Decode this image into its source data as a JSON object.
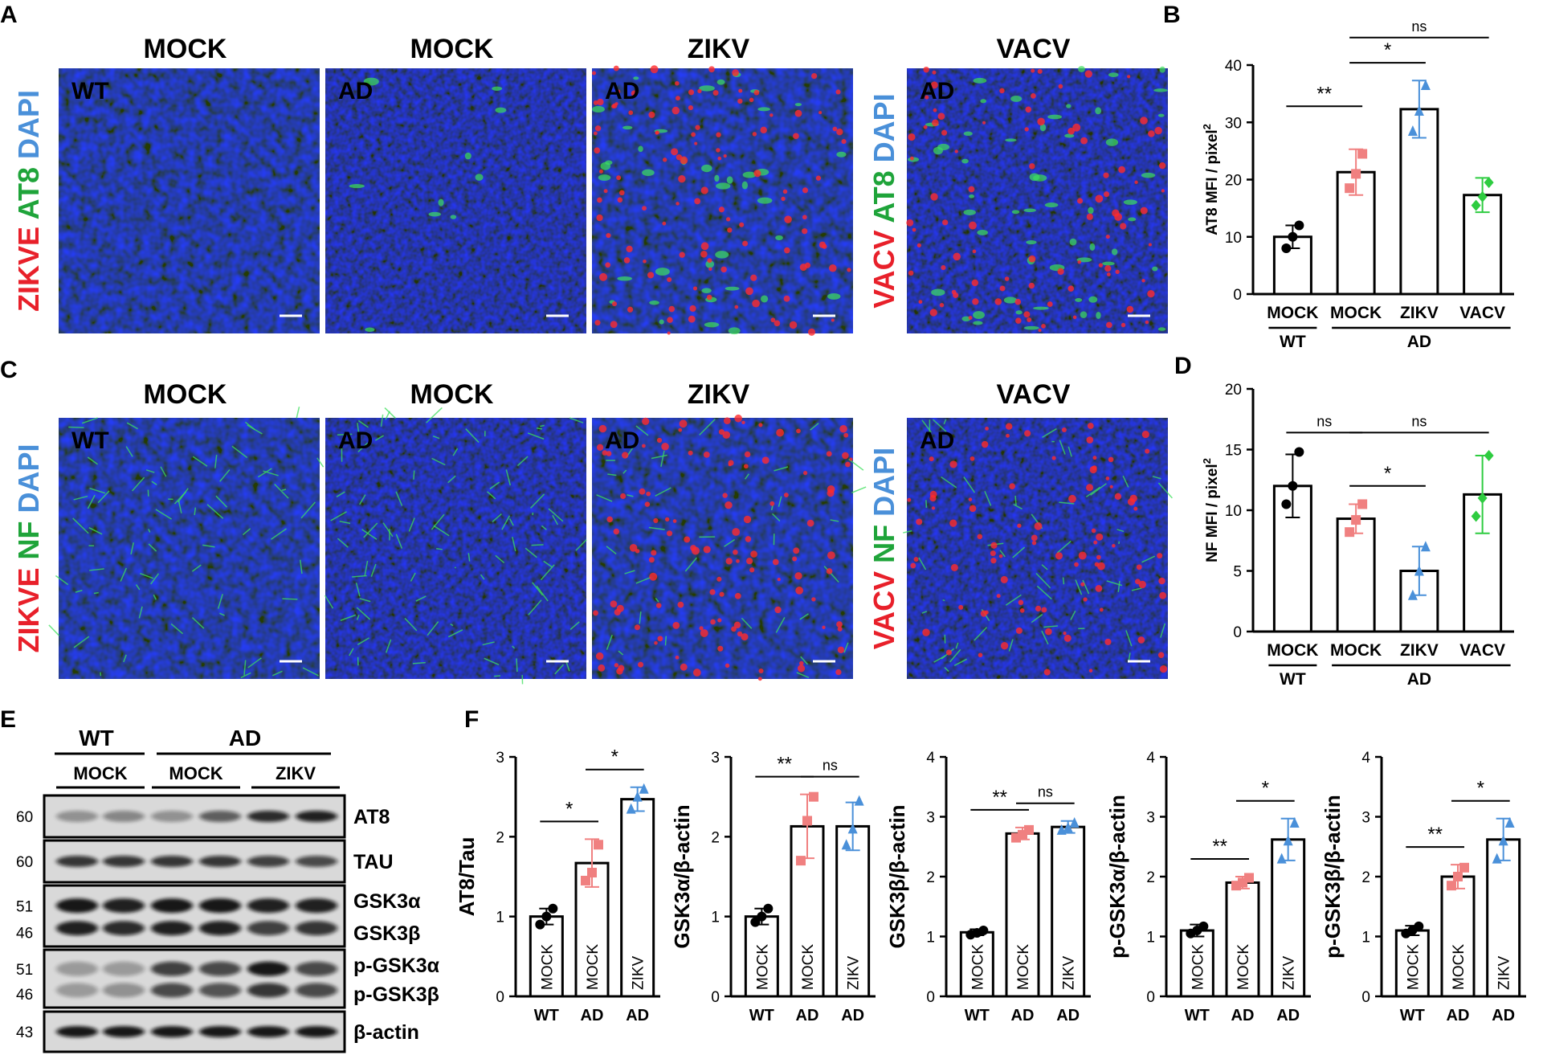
{
  "panel_letters": {
    "a": "A",
    "b": "B",
    "c": "C",
    "d": "D",
    "e": "E",
    "f": "F"
  },
  "micro_A": {
    "headers": [
      "MOCK",
      "MOCK",
      "ZIKV",
      "VACV"
    ],
    "tiles": [
      "WT",
      "AD",
      "AD",
      "AD"
    ],
    "left_stain": [
      {
        "text": "ZIKVE",
        "color": "#e8202a"
      },
      {
        "text": " AT8",
        "color": "#1fa43a"
      },
      {
        "text": " DAPI",
        "color": "#4a90d9"
      }
    ],
    "right_stain": [
      {
        "text": "VACV",
        "color": "#e8202a"
      },
      {
        "text": " AT8",
        "color": "#1fa43a"
      },
      {
        "text": " DAPI",
        "color": "#4a90d9"
      }
    ]
  },
  "micro_C": {
    "headers": [
      "MOCK",
      "MOCK",
      "ZIKV",
      "VACV"
    ],
    "tiles": [
      "WT",
      "AD",
      "AD",
      "AD"
    ],
    "left_stain": [
      {
        "text": "ZIKVE",
        "color": "#e8202a"
      },
      {
        "text": " NF",
        "color": "#1fa43a"
      },
      {
        "text": " DAPI",
        "color": "#4a90d9"
      }
    ],
    "right_stain": [
      {
        "text": "VACV",
        "color": "#e8202a"
      },
      {
        "text": " NF",
        "color": "#1fa43a"
      },
      {
        "text": " DAPI",
        "color": "#4a90d9"
      }
    ]
  },
  "western": {
    "group_wt": "WT",
    "group_ad": "AD",
    "lane_labels": [
      "MOCK",
      "MOCK",
      "ZIKV"
    ],
    "rows": [
      {
        "label": "AT8",
        "mw": [
          "60"
        ]
      },
      {
        "label": "TAU",
        "mw": [
          "60"
        ]
      },
      {
        "label": "GSK3α",
        "label2": "GSK3β",
        "mw": [
          "51",
          "46"
        ]
      },
      {
        "label": "p-GSK3α",
        "label2": "p-GSK3β",
        "mw": [
          "51",
          "46"
        ]
      },
      {
        "label": "β-actin",
        "mw": [
          "43"
        ]
      }
    ]
  },
  "chart_data": [
    {
      "id": "B",
      "type": "bar",
      "categories": [
        "MOCK",
        "MOCK",
        "ZIKV",
        "VACV"
      ],
      "groups": [
        "WT",
        "AD"
      ],
      "values": [
        10,
        21.3,
        32.3,
        17.3
      ],
      "errors": [
        2.0,
        4.0,
        5.0,
        3.0
      ],
      "points": [
        [
          8,
          10,
          12
        ],
        [
          18.5,
          21,
          24.5
        ],
        [
          28.5,
          32,
          36.5
        ],
        [
          15.5,
          17,
          19.5
        ]
      ],
      "colors": [
        "#000000",
        "#f08080",
        "#4a90d9",
        "#2ecc40"
      ],
      "markers": [
        "circle",
        "square",
        "triangle",
        "diamond"
      ],
      "ylabel": "AT8 MFI / pixel",
      "ylabel_sup": "2",
      "ylim": [
        0,
        40
      ],
      "yticks": [
        0,
        10,
        20,
        30,
        40
      ],
      "significance": [
        "**",
        "*",
        "ns"
      ]
    },
    {
      "id": "D",
      "type": "bar",
      "categories": [
        "MOCK",
        "MOCK",
        "ZIKV",
        "VACV"
      ],
      "groups": [
        "WT",
        "AD"
      ],
      "values": [
        12,
        9.3,
        5,
        11.3
      ],
      "errors": [
        2.6,
        1.2,
        2.0,
        3.2
      ],
      "points": [
        [
          10.5,
          12,
          14.8
        ],
        [
          8.2,
          9.2,
          10.5
        ],
        [
          3,
          5,
          7
        ],
        [
          9.5,
          11,
          14.5
        ]
      ],
      "colors": [
        "#000000",
        "#f08080",
        "#4a90d9",
        "#2ecc40"
      ],
      "markers": [
        "circle",
        "square",
        "triangle",
        "diamond"
      ],
      "ylabel": "NF MFI / pixel",
      "ylabel_sup": "2",
      "ylim": [
        0,
        20
      ],
      "yticks": [
        0,
        5,
        10,
        15,
        20
      ],
      "significance": [
        "ns",
        "ns",
        "*"
      ]
    },
    {
      "id": "F1",
      "type": "bar",
      "categories": [
        "WT",
        "AD",
        "AD"
      ],
      "bar_labels": [
        "MOCK",
        "MOCK",
        "ZIKV"
      ],
      "values": [
        1.0,
        1.67,
        2.47
      ],
      "errors": [
        0.1,
        0.3,
        0.15
      ],
      "points": [
        [
          0.9,
          1.0,
          1.1
        ],
        [
          1.45,
          1.55,
          1.9
        ],
        [
          2.35,
          2.5,
          2.6
        ]
      ],
      "colors": [
        "#000000",
        "#f08080",
        "#4a90d9"
      ],
      "markers": [
        "circle",
        "square",
        "triangle"
      ],
      "ylabel": "AT8/Tau",
      "ylim": [
        0,
        3
      ],
      "yticks": [
        0,
        1,
        2,
        3
      ],
      "significance": [
        "*",
        "*"
      ]
    },
    {
      "id": "F2",
      "type": "bar",
      "categories": [
        "WT",
        "AD",
        "AD"
      ],
      "bar_labels": [
        "MOCK",
        "MOCK",
        "ZIKV"
      ],
      "values": [
        1.0,
        2.13,
        2.13
      ],
      "errors": [
        0.1,
        0.4,
        0.3
      ],
      "points": [
        [
          0.93,
          1.0,
          1.1
        ],
        [
          1.7,
          2.2,
          2.5
        ],
        [
          1.9,
          2.1,
          2.45
        ]
      ],
      "colors": [
        "#000000",
        "#f08080",
        "#4a90d9"
      ],
      "markers": [
        "circle",
        "square",
        "triangle"
      ],
      "ylabel": "GSK3α/β-actin",
      "ylim": [
        0,
        3
      ],
      "yticks": [
        0,
        1,
        2,
        3
      ],
      "significance": [
        "**",
        "ns"
      ]
    },
    {
      "id": "F3",
      "type": "bar",
      "categories": [
        "WT",
        "AD",
        "AD"
      ],
      "bar_labels": [
        "MOCK",
        "MOCK",
        "ZIKV"
      ],
      "values": [
        1.07,
        2.72,
        2.83
      ],
      "errors": [
        0.05,
        0.1,
        0.1
      ],
      "points": [
        [
          1.03,
          1.06,
          1.1
        ],
        [
          2.65,
          2.7,
          2.78
        ],
        [
          2.78,
          2.82,
          2.9
        ]
      ],
      "colors": [
        "#000000",
        "#f08080",
        "#4a90d9"
      ],
      "markers": [
        "circle",
        "square",
        "triangle"
      ],
      "ylabel": "GSK3β/β-actin",
      "ylim": [
        0,
        4
      ],
      "yticks": [
        0,
        1,
        2,
        3,
        4
      ],
      "significance": [
        "**",
        "ns"
      ]
    },
    {
      "id": "F4",
      "type": "bar",
      "categories": [
        "WT",
        "AD",
        "AD"
      ],
      "bar_labels": [
        "MOCK",
        "MOCK",
        "ZIKV"
      ],
      "values": [
        1.1,
        1.9,
        2.62
      ],
      "errors": [
        0.1,
        0.1,
        0.35
      ],
      "points": [
        [
          1.05,
          1.1,
          1.17
        ],
        [
          1.85,
          1.9,
          1.98
        ],
        [
          2.3,
          2.6,
          2.9
        ]
      ],
      "colors": [
        "#000000",
        "#f08080",
        "#4a90d9"
      ],
      "markers": [
        "circle",
        "square",
        "triangle"
      ],
      "ylabel": "p-GSK3α/β-actin",
      "ylim": [
        0,
        4
      ],
      "yticks": [
        0,
        1,
        2,
        3,
        4
      ],
      "significance": [
        "**",
        "*"
      ]
    },
    {
      "id": "F5",
      "type": "bar",
      "categories": [
        "WT",
        "AD",
        "AD"
      ],
      "bar_labels": [
        "MOCK",
        "MOCK",
        "ZIKV"
      ],
      "values": [
        1.1,
        2.0,
        2.62
      ],
      "errors": [
        0.08,
        0.2,
        0.35
      ],
      "points": [
        [
          1.05,
          1.1,
          1.17
        ],
        [
          1.85,
          2.0,
          2.15
        ],
        [
          2.3,
          2.6,
          2.9
        ]
      ],
      "colors": [
        "#000000",
        "#f08080",
        "#4a90d9"
      ],
      "markers": [
        "circle",
        "square",
        "triangle"
      ],
      "ylabel": "p-GSK3β/β-actin",
      "ylim": [
        0,
        4
      ],
      "yticks": [
        0,
        1,
        2,
        3,
        4
      ],
      "significance": [
        "**",
        "*"
      ]
    }
  ]
}
